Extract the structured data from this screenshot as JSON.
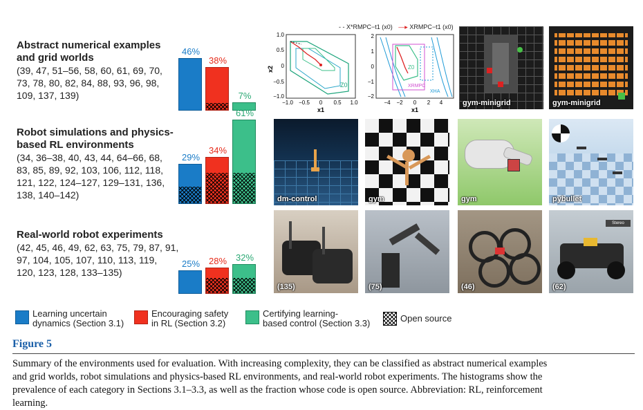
{
  "sections": [
    {
      "title_line1": "Abstract numerical examples",
      "title_line2": "and grid worlds",
      "refs_line1": "(39, 47, 51–56, 58, 60, 61, 69, 70,",
      "refs_line2": "73, 78, 80, 82, 84, 88, 93, 96, 98,",
      "refs_line3": "109, 137, 139)",
      "bars": [
        {
          "pct_label": "46%",
          "value": 46,
          "open_source": 0
        },
        {
          "pct_label": "38%",
          "value": 38,
          "open_source": 6
        },
        {
          "pct_label": "7%",
          "value": 7,
          "open_source": 0
        }
      ]
    },
    {
      "title_line1": "Robot simulations and physics-",
      "title_line2": "based RL environments",
      "refs_line1": "(34, 36–38, 40, 43, 44, 64–66, 68,",
      "refs_line2": "83, 85, 89, 92, 103, 106, 112, 118,",
      "refs_line3": "121, 122, 124–127, 129–131, 136,",
      "refs_line4": "138, 140–142)",
      "bars": [
        {
          "pct_label": "29%",
          "value": 29,
          "open_source": 12
        },
        {
          "pct_label": "34%",
          "value": 34,
          "open_source": 22
        },
        {
          "pct_label": "61%",
          "value": 61,
          "open_source": 22
        }
      ]
    },
    {
      "title_line1": "Real-world robot experiments",
      "refs_line1": "(42, 45, 46, 49, 62, 63, 75, 79, 87, 91,",
      "refs_line2": "97, 104, 105, 107, 110, 113, 119,",
      "refs_line3": "120, 123, 128, 133–135)",
      "bars": [
        {
          "pct_label": "25%",
          "value": 25,
          "open_source": 0
        },
        {
          "pct_label": "28%",
          "value": 28,
          "open_source": 16
        },
        {
          "pct_label": "32%",
          "value": 32,
          "open_source": 16
        }
      ]
    }
  ],
  "plots": {
    "legend_a": "X*RMPC−t1 (x0)",
    "legend_b": "XRMPC−t1 (x0)",
    "p1_yticks": [
      "1.0",
      "0.5",
      "0",
      "−0.5",
      "−1.0"
    ],
    "p1_xticks": [
      "−1.0",
      "−0.5",
      "0",
      "0.5",
      "1.0"
    ],
    "p1_xlabel": "x1",
    "p1_ylabel": "x2",
    "p1_zlabel": "Z0",
    "p2_yticks": [
      "2",
      "1",
      "0",
      "−1",
      "−2"
    ],
    "p2_xticks": [
      "−4",
      "−2",
      "0",
      "2",
      "4"
    ],
    "p2_xlabel": "x1",
    "p2_labels": [
      "Z0",
      "XRMPC",
      "XHA"
    ]
  },
  "thumbnails": [
    {
      "label": "gym-minigrid"
    },
    {
      "label": "gym-minigrid"
    },
    {
      "label": "dm-control"
    },
    {
      "label": "gym"
    },
    {
      "label": "gym"
    },
    {
      "label": "pybullet"
    },
    {
      "label": "(135)"
    },
    {
      "label": "(75)"
    },
    {
      "label": "(46)"
    },
    {
      "label": "(62)",
      "extra": "Stereo Camera"
    }
  ],
  "legend": {
    "item1_line1": "Learning uncertain",
    "item1_line2": "dynamics (Section 3.1)",
    "item2_line1": "Encouraging safety",
    "item2_line2": "in RL (Section 3.2)",
    "item3_line1": "Certifying learning-",
    "item3_line2": "based control (Section 3.3)",
    "item4": "Open source"
  },
  "figure_label": "Figure 5",
  "caption_line1": "Summary of the environments used for evaluation. With increasing complexity, they can be classified as abstract numerical examples",
  "caption_line2": "and grid worlds, robot simulations and physics-based RL environments, and real-world robot experiments. The histograms show the",
  "caption_line3": "prevalence of each category in Sections 3.1–3.3, as well as the fraction whose code is open source. Abbreviation: RL, reinforcement",
  "caption_line4": "learning.",
  "colors": {
    "blue": "#1a7cc7",
    "red": "#f0311f",
    "green": "#3cbf8a",
    "figure_label": "#1a5fa8"
  }
}
